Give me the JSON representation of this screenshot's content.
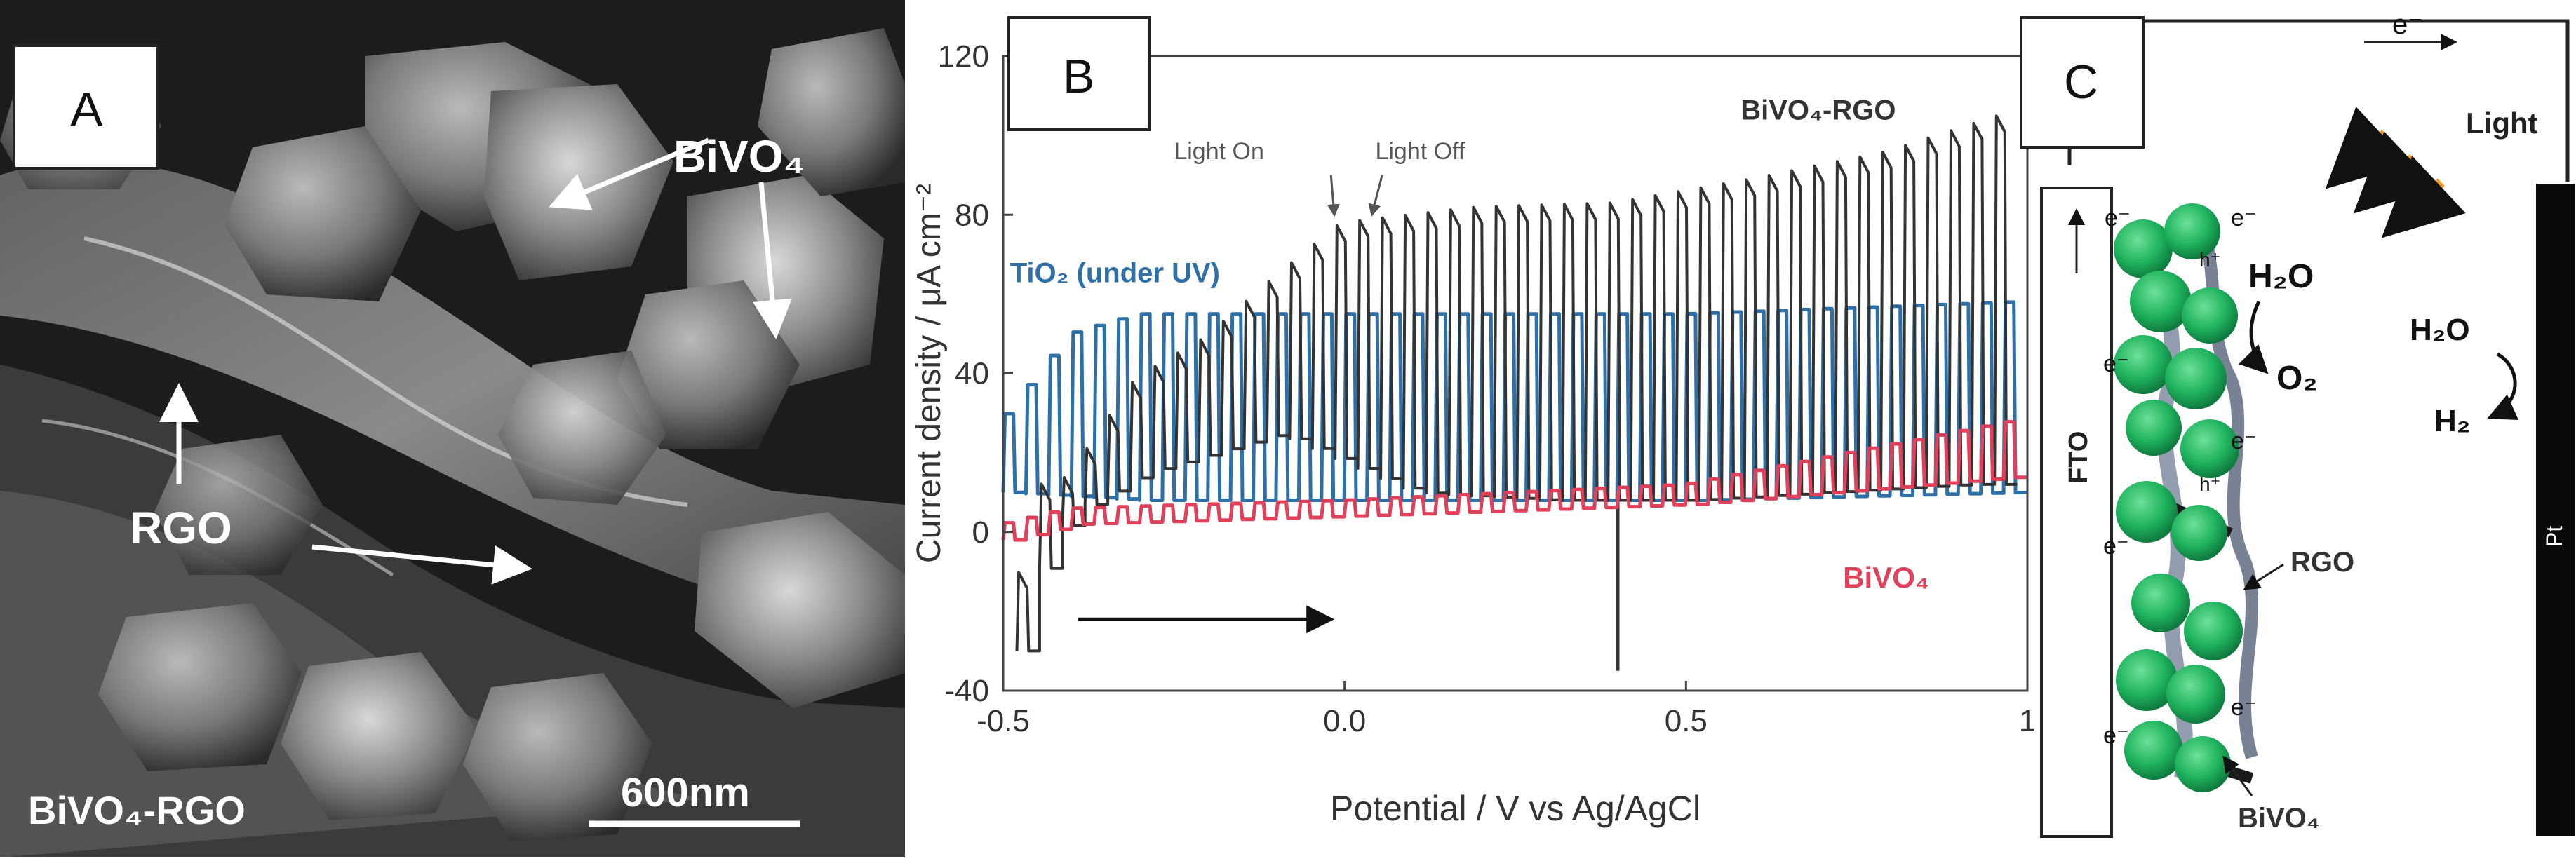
{
  "figure": {
    "panel_a": {
      "letter": "A",
      "label_bivo4": "BiVO₄",
      "label_rgo": "RGO",
      "label_sample": "BiVO₄-RGO",
      "scale_bar": "600nm"
    },
    "panel_b": {
      "letter": "B"
    },
    "panel_c": {
      "letter": "C",
      "electron_top": "e⁻",
      "light_label": "Light",
      "fto_label": "FTO",
      "pt_label": "Pt",
      "h2o_photoanode": "H₂O",
      "o2_label": "O₂",
      "rgo_label": "RGO",
      "bivo4_label": "BiVO₄",
      "h2o_cathode": "H₂O",
      "h2_label": "H₂",
      "electron_label": "e⁻",
      "hole_label": "h⁺"
    }
  },
  "chart_data": {
    "type": "line",
    "title": "",
    "xlabel": "Potential / V vs Ag/AgCl",
    "ylabel": "Current density / μA cm⁻²",
    "xlim": [
      -0.5,
      1.0
    ],
    "ylim": [
      -40,
      120
    ],
    "x_ticks": [
      -0.5,
      0.0,
      0.5,
      1.0
    ],
    "x_tick_labels": [
      "-0.5",
      "0.0",
      "0.5",
      "1"
    ],
    "y_ticks": [
      -40,
      0,
      40,
      80,
      120
    ],
    "y_tick_labels": [
      "-40",
      "0",
      "40",
      "80",
      "120"
    ],
    "annotations": {
      "light_on": "Light On",
      "light_off": "Light Off",
      "scan_direction": "→"
    },
    "series": [
      {
        "name": "BiVO₄-RGO",
        "label": "BiVO₄-RGO",
        "color": "#333333",
        "dark_envelope": [
          [
            -0.48,
            -30
          ],
          [
            -0.44,
            -5
          ],
          [
            -0.4,
            5
          ],
          [
            -0.3,
            15
          ],
          [
            -0.1,
            25
          ],
          [
            0.1,
            10
          ],
          [
            0.3,
            8
          ],
          [
            0.5,
            8
          ],
          [
            0.7,
            10
          ],
          [
            0.9,
            12
          ],
          [
            0.98,
            12
          ]
        ],
        "light_envelope": [
          [
            -0.48,
            -20
          ],
          [
            -0.44,
            8
          ],
          [
            -0.4,
            10
          ],
          [
            -0.3,
            35
          ],
          [
            -0.2,
            45
          ],
          [
            -0.1,
            60
          ],
          [
            0.0,
            74
          ],
          [
            0.2,
            78
          ],
          [
            0.4,
            79
          ],
          [
            0.6,
            85
          ],
          [
            0.8,
            92
          ],
          [
            0.98,
            102
          ]
        ],
        "chop_period_V": 0.0333,
        "spikes": [
          [
            0.4,
            -35
          ]
        ]
      },
      {
        "name": "TiO₂ (under UV)",
        "label": "TiO₂ (under UV)",
        "color": "#2f6fa8",
        "dark_envelope": [
          [
            -0.5,
            10
          ],
          [
            -0.3,
            8
          ],
          [
            0.0,
            8
          ],
          [
            0.5,
            8
          ],
          [
            0.98,
            10
          ]
        ],
        "light_envelope": [
          [
            -0.5,
            28
          ],
          [
            -0.4,
            50
          ],
          [
            -0.3,
            55
          ],
          [
            0.0,
            55
          ],
          [
            0.5,
            55
          ],
          [
            0.98,
            58
          ]
        ],
        "chop_period_V": 0.0333
      },
      {
        "name": "BiVO₄",
        "label": "BiVO₄",
        "color": "#e0405a",
        "dark_envelope": [
          [
            -0.5,
            -2
          ],
          [
            -0.4,
            2
          ],
          [
            0.0,
            4
          ],
          [
            0.5,
            7
          ],
          [
            0.98,
            14
          ]
        ],
        "light_envelope": [
          [
            -0.5,
            2
          ],
          [
            -0.4,
            6
          ],
          [
            0.0,
            8
          ],
          [
            0.5,
            12
          ],
          [
            0.98,
            28
          ]
        ],
        "chop_period_V": 0.0333
      }
    ]
  }
}
